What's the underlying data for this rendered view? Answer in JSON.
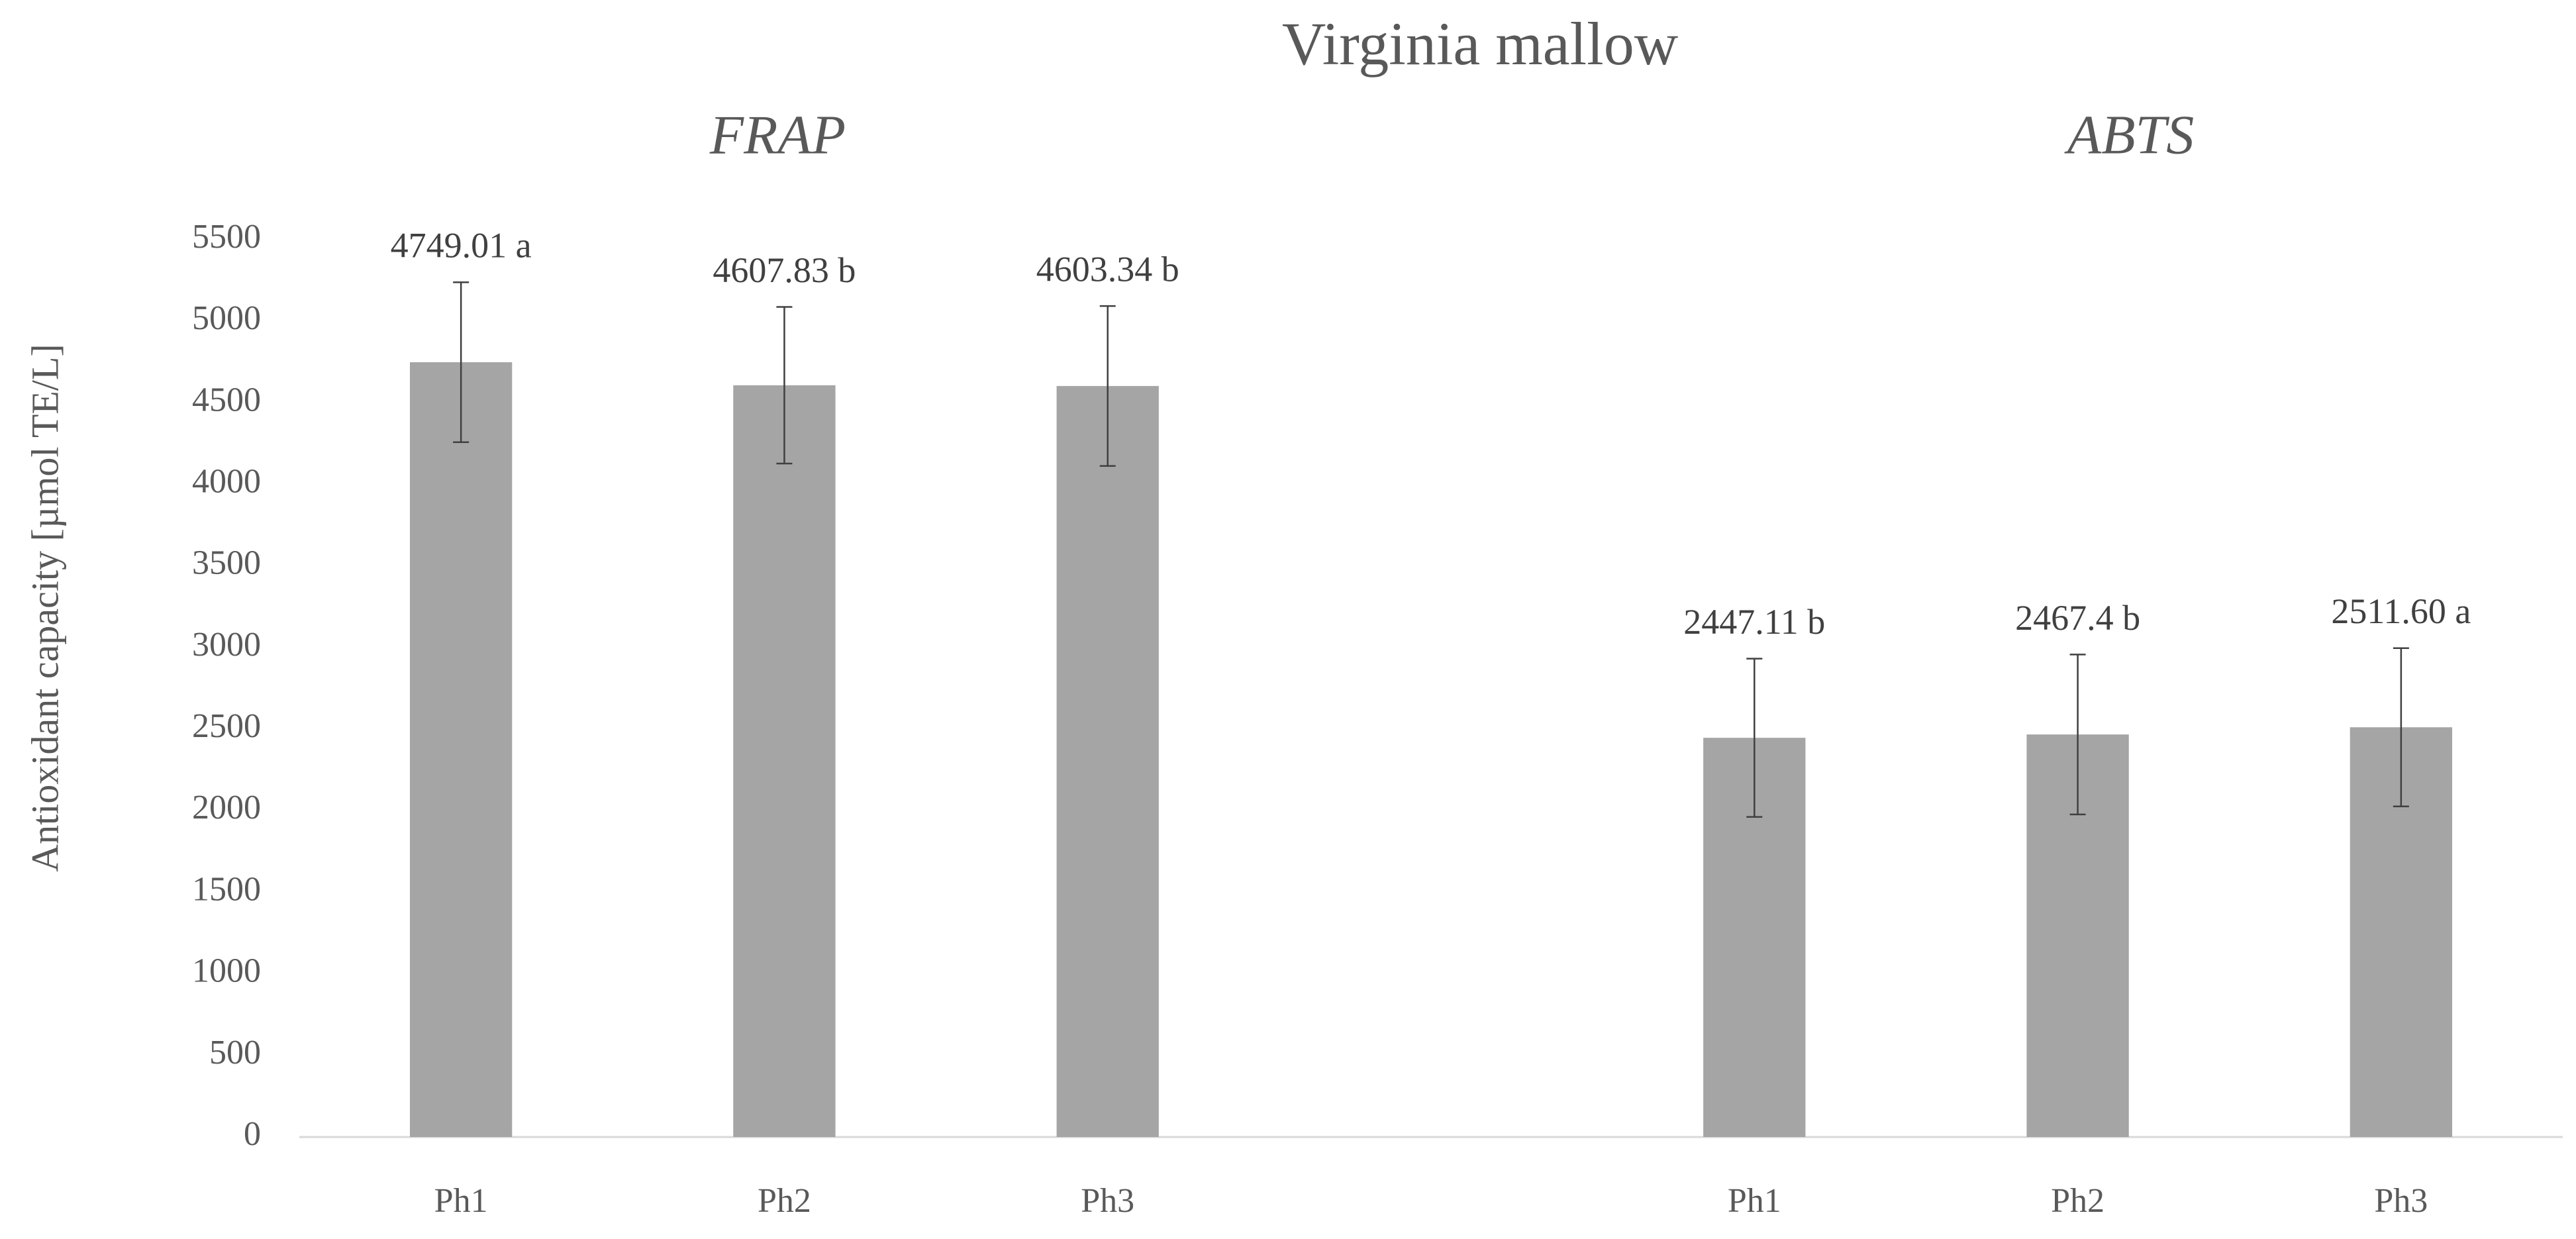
{
  "chart_data": {
    "type": "bar",
    "title": "Virginia mallow",
    "annotations": [
      "FRAP",
      "ABTS"
    ],
    "y_label": "Antioxidant capacity [µmol TE/L]",
    "categories": [
      "Ph1",
      "Ph2",
      "Ph3",
      null,
      "Ph1",
      "Ph2",
      "Ph3"
    ],
    "values": [
      4749.01,
      4607.83,
      4603.34,
      null,
      2447.11,
      2467.4,
      2511.6
    ],
    "value_labels": [
      "4749.01 a",
      "4607.83 b",
      "4603.34 b",
      null,
      "2447.11 b",
      "2467.4 b",
      "2511.60 a"
    ],
    "errors": [
      490,
      480,
      490,
      null,
      485,
      490,
      485
    ],
    "color": "#a5a5a5",
    "error_color": "#404040",
    "ylim": [
      0,
      5500
    ],
    "yticks": [
      0,
      500,
      1000,
      1500,
      2000,
      2500,
      3000,
      3500,
      4000,
      4500,
      5000,
      5500
    ],
    "grid": false
  }
}
